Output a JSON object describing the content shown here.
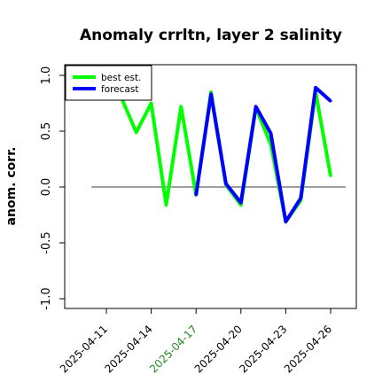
{
  "chart_data": {
    "type": "line",
    "title": "Anomaly crrltn, layer 2 salinity",
    "ylabel": "anom. corr.",
    "xlabel": "",
    "ylim": [
      -1.0,
      1.0
    ],
    "yticks": [
      "-1.0",
      "-0.5",
      "0.0",
      "0.5",
      "1.0"
    ],
    "xticks": [
      "2025-04-11",
      "2025-04-14",
      "2025-04-17",
      "2025-04-20",
      "2025-04-23",
      "2025-04-26"
    ],
    "highlighted_xtick": "2025-04-17",
    "highlight_color": "#228B22",
    "reference_line": 0,
    "legend": {
      "position": "top-left",
      "entries": [
        "best est.",
        "forecast"
      ]
    },
    "series": [
      {
        "name": "best est.",
        "color": "#00ff00",
        "points": [
          [
            "2025-04-12",
            0.8
          ],
          [
            "2025-04-13",
            0.49
          ],
          [
            "2025-04-14",
            0.75
          ],
          [
            "2025-04-15",
            -0.16
          ],
          [
            "2025-04-16",
            0.72
          ],
          [
            "2025-04-17",
            -0.07
          ],
          [
            "2025-04-18",
            0.85
          ],
          [
            "2025-04-19",
            0.02
          ],
          [
            "2025-04-20",
            -0.16
          ],
          [
            "2025-04-21",
            0.71
          ],
          [
            "2025-04-22",
            0.38
          ],
          [
            "2025-04-23",
            -0.31
          ],
          [
            "2025-04-24",
            -0.12
          ],
          [
            "2025-04-25",
            0.85
          ],
          [
            "2025-04-26",
            0.1
          ]
        ]
      },
      {
        "name": "forecast",
        "color": "#0000ff",
        "points": [
          [
            "2025-04-17",
            -0.07
          ],
          [
            "2025-04-18",
            0.83
          ],
          [
            "2025-04-19",
            0.03
          ],
          [
            "2025-04-20",
            -0.14
          ],
          [
            "2025-04-21",
            0.72
          ],
          [
            "2025-04-22",
            0.48
          ],
          [
            "2025-04-23",
            -0.31
          ],
          [
            "2025-04-24",
            -0.1
          ],
          [
            "2025-04-25",
            0.89
          ],
          [
            "2025-04-26",
            0.77
          ]
        ]
      }
    ]
  }
}
